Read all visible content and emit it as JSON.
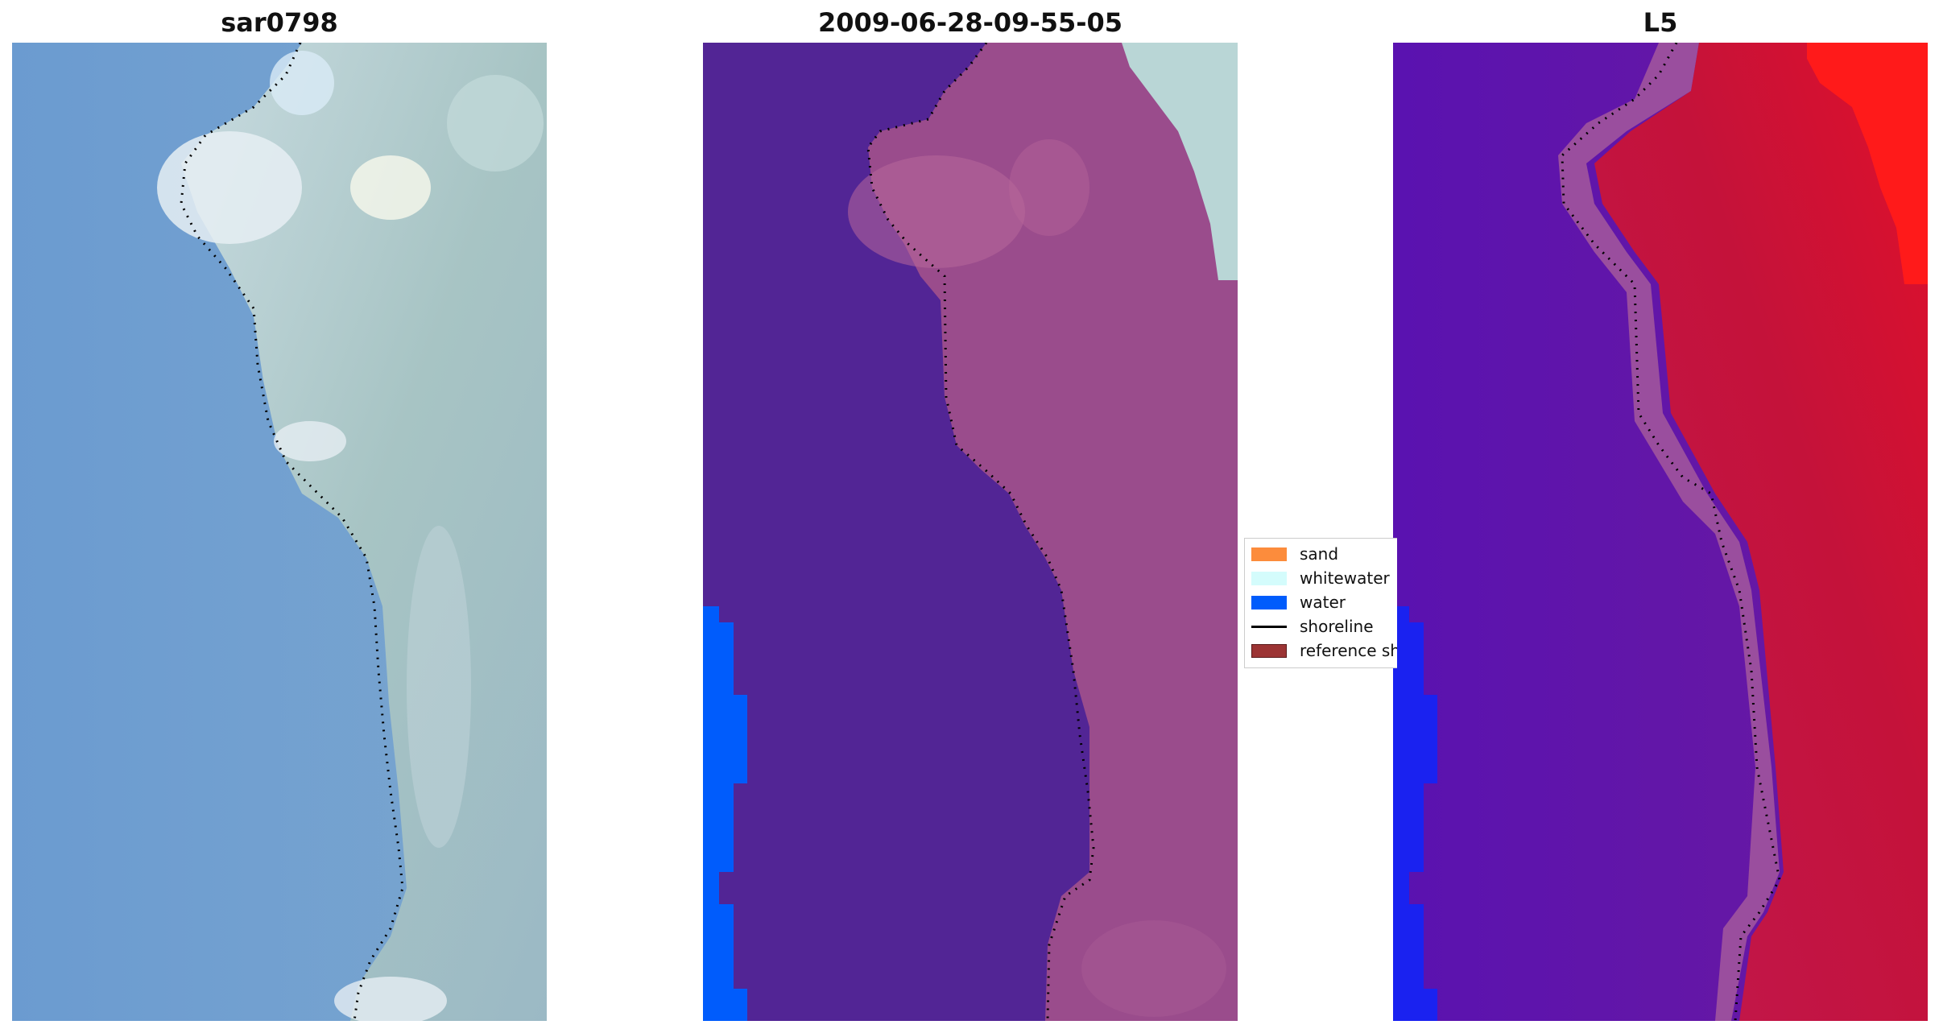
{
  "panels": [
    {
      "title": "sar0798"
    },
    {
      "title": "2009-06-28-09-55-05"
    },
    {
      "title": "L5"
    }
  ],
  "legend": {
    "items": [
      {
        "label": "sand",
        "kind": "patch",
        "color": "#fc8c3c"
      },
      {
        "label": "whitewater",
        "kind": "patch",
        "color": "#d4fcfc"
      },
      {
        "label": "water",
        "kind": "patch",
        "color": "#005cfc"
      },
      {
        "label": "shoreline",
        "kind": "line",
        "color": "#000000"
      },
      {
        "label": "reference shoreline",
        "kind": "patch",
        "color": "#9c3434"
      }
    ]
  },
  "colors": {
    "sea_rgb": "#6e9ccd",
    "land_rgb": "#a9c3c7",
    "whitewater_rgb": "#dfeaf2",
    "classified_sea": "#522595",
    "classified_land": "#9a4c8c",
    "classified_water": "#005cfc",
    "classified_whitewater": "#b9d6d6",
    "index_sea": "#5e16a8",
    "index_land": "#c4123a",
    "index_water": "#1a22f0",
    "index_high": "#ff1a1a"
  }
}
